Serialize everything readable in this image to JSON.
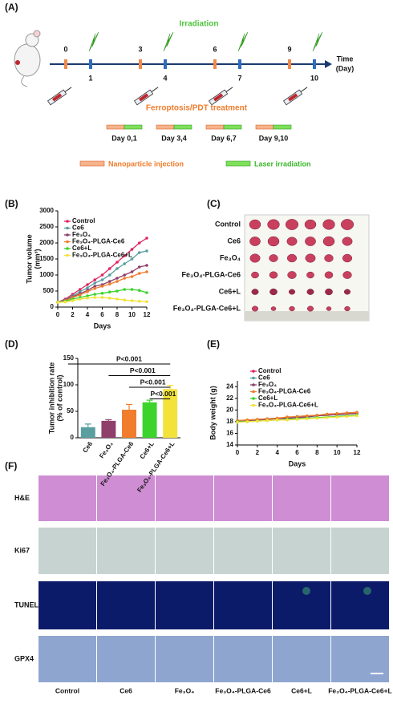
{
  "panel_labels": [
    "(A)",
    "(B)",
    "(C)",
    "(D)",
    "(E)",
    "(F)"
  ],
  "schematic": {
    "irradiation_title": "Irradiation",
    "injection_days": [
      "0",
      "3",
      "6",
      "9"
    ],
    "irradiation_days": [
      "1",
      "4",
      "7",
      "10"
    ],
    "axis_label": "Time",
    "axis_unit": "(Day)",
    "treatment_title": "Ferroptosis/PDT treatment",
    "schedule": [
      "Day 0,1",
      "Day 3,4",
      "Day 6,7",
      "Day 9,10"
    ],
    "legend": [
      "Nanoparticle injection",
      "Laser irradiation"
    ]
  },
  "chart_data": [
    {
      "type": "line",
      "xlabel": "Days",
      "ylabel": [
        "Tumor volume",
        "(mm³)"
      ],
      "x": [
        0,
        1,
        2,
        3,
        4,
        5,
        6,
        7,
        8,
        9,
        10,
        11,
        12
      ],
      "xlim": [
        0,
        12
      ],
      "xticks": [
        0,
        2,
        4,
        6,
        8,
        10,
        12
      ],
      "ylim": [
        0,
        3000
      ],
      "yticks": [
        0,
        500,
        1000,
        1500,
        2000,
        2500,
        3000
      ],
      "series": [
        {
          "name": "Control",
          "color": "#e0245e",
          "values": [
            150,
            250,
            400,
            550,
            700,
            850,
            1000,
            1200,
            1400,
            1600,
            1800,
            2000,
            2150
          ]
        },
        {
          "name": "Ce6",
          "color": "#5a9ea0",
          "values": [
            150,
            230,
            350,
            480,
            600,
            750,
            850,
            1000,
            1200,
            1350,
            1500,
            1700,
            1750
          ]
        },
        {
          "name": "Fe₃O₄",
          "color": "#8e3f6a",
          "values": [
            150,
            220,
            320,
            420,
            520,
            650,
            700,
            800,
            900,
            1000,
            1100,
            1250,
            1300
          ]
        },
        {
          "name": "Fe₃O₄-PLGA-Ce6",
          "color": "#f07c2c",
          "values": [
            150,
            200,
            300,
            380,
            480,
            580,
            650,
            720,
            800,
            900,
            950,
            1050,
            1100
          ]
        },
        {
          "name": "Ce6+L",
          "color": "#3cd32c",
          "values": [
            150,
            180,
            250,
            300,
            350,
            400,
            430,
            470,
            500,
            550,
            550,
            520,
            450
          ]
        },
        {
          "name": "Fe₃O₄-PLGA-Ce6+L",
          "color": "#f2e23a",
          "values": [
            150,
            160,
            200,
            250,
            280,
            300,
            300,
            280,
            250,
            220,
            200,
            180,
            170
          ]
        }
      ]
    },
    {
      "type": "bar",
      "ylabel": [
        "Tumor inhibition rate",
        "(% of control)"
      ],
      "categories": [
        "Ce6",
        "Fe₃O₄",
        "Fe₃O₄-PLGA-Ce6",
        "Ce6+L",
        "Fe₃O₄-PLGA-Ce6+L"
      ],
      "values": [
        20,
        32,
        53,
        67,
        92
      ],
      "errors": [
        6,
        2,
        10,
        4,
        7
      ],
      "colors": [
        "#5a9ea0",
        "#8e3f6a",
        "#f07c2c",
        "#3cd32c",
        "#f2e23a"
      ],
      "ylim": [
        0,
        150
      ],
      "yticks": [
        0,
        50,
        100,
        150
      ],
      "annotations": [
        "P<0.001",
        "P<0.001",
        "P<0.001",
        "P<0.001"
      ]
    },
    {
      "type": "line",
      "xlabel": "Days",
      "ylabel": [
        "Body weight (g)"
      ],
      "x": [
        0,
        1,
        2,
        3,
        4,
        5,
        6,
        7,
        8,
        9,
        10,
        11,
        12
      ],
      "xlim": [
        0,
        12
      ],
      "xticks": [
        0,
        2,
        4,
        6,
        8,
        10,
        12
      ],
      "ylim": [
        14,
        25
      ],
      "yticks": [
        14,
        16,
        18,
        20,
        22,
        24
      ],
      "series": [
        {
          "name": "Control",
          "color": "#e0245e",
          "values": [
            18.0,
            18.2,
            18.3,
            18.4,
            18.5,
            18.6,
            18.8,
            18.9,
            19.0,
            19.1,
            19.3,
            19.4,
            19.5
          ]
        },
        {
          "name": "Ce6",
          "color": "#5a9ea0",
          "values": [
            18.1,
            18.2,
            18.4,
            18.5,
            18.6,
            18.7,
            18.9,
            19.0,
            19.1,
            19.2,
            19.3,
            19.5,
            19.6
          ]
        },
        {
          "name": "Fe₃O₄",
          "color": "#8e3f6a",
          "values": [
            18.0,
            18.1,
            18.2,
            18.4,
            18.5,
            18.6,
            18.7,
            18.8,
            19.0,
            19.1,
            19.2,
            19.3,
            19.4
          ]
        },
        {
          "name": "Fe₃O₄-PLGA-Ce6",
          "color": "#f07c2c",
          "values": [
            18.2,
            18.3,
            18.4,
            18.5,
            18.6,
            18.8,
            18.9,
            19.0,
            19.1,
            19.3,
            19.4,
            19.5,
            19.6
          ]
        },
        {
          "name": "Ce6+L",
          "color": "#3cd32c",
          "values": [
            18.0,
            18.0,
            18.1,
            18.2,
            18.3,
            18.4,
            18.5,
            18.6,
            18.7,
            18.8,
            18.9,
            19.0,
            19.1
          ]
        },
        {
          "name": "Fe₃O₄-PLGA-Ce6+L",
          "color": "#f2e23a",
          "values": [
            17.9,
            18.0,
            18.1,
            18.2,
            18.3,
            18.3,
            18.4,
            18.5,
            18.6,
            18.7,
            18.8,
            18.9,
            19.0
          ]
        }
      ]
    }
  ],
  "tumor_photos": {
    "rows": [
      "Control",
      "Ce6",
      "Fe₃O₄",
      "Fe₃O₄-PLGA-Ce6",
      "Ce6+L",
      "Fe₃O₄-PLGA-Ce6+L"
    ]
  },
  "histology": {
    "rows": [
      "H&E",
      "Ki67",
      "TUNEL",
      "GPX4"
    ],
    "columns": [
      "Control",
      "Ce6",
      "Fe₃O₄",
      "Fe₃O₄-PLGA-Ce6",
      "Ce6+L",
      "Fe₃O₄-PLGA-Ce6+L"
    ]
  }
}
